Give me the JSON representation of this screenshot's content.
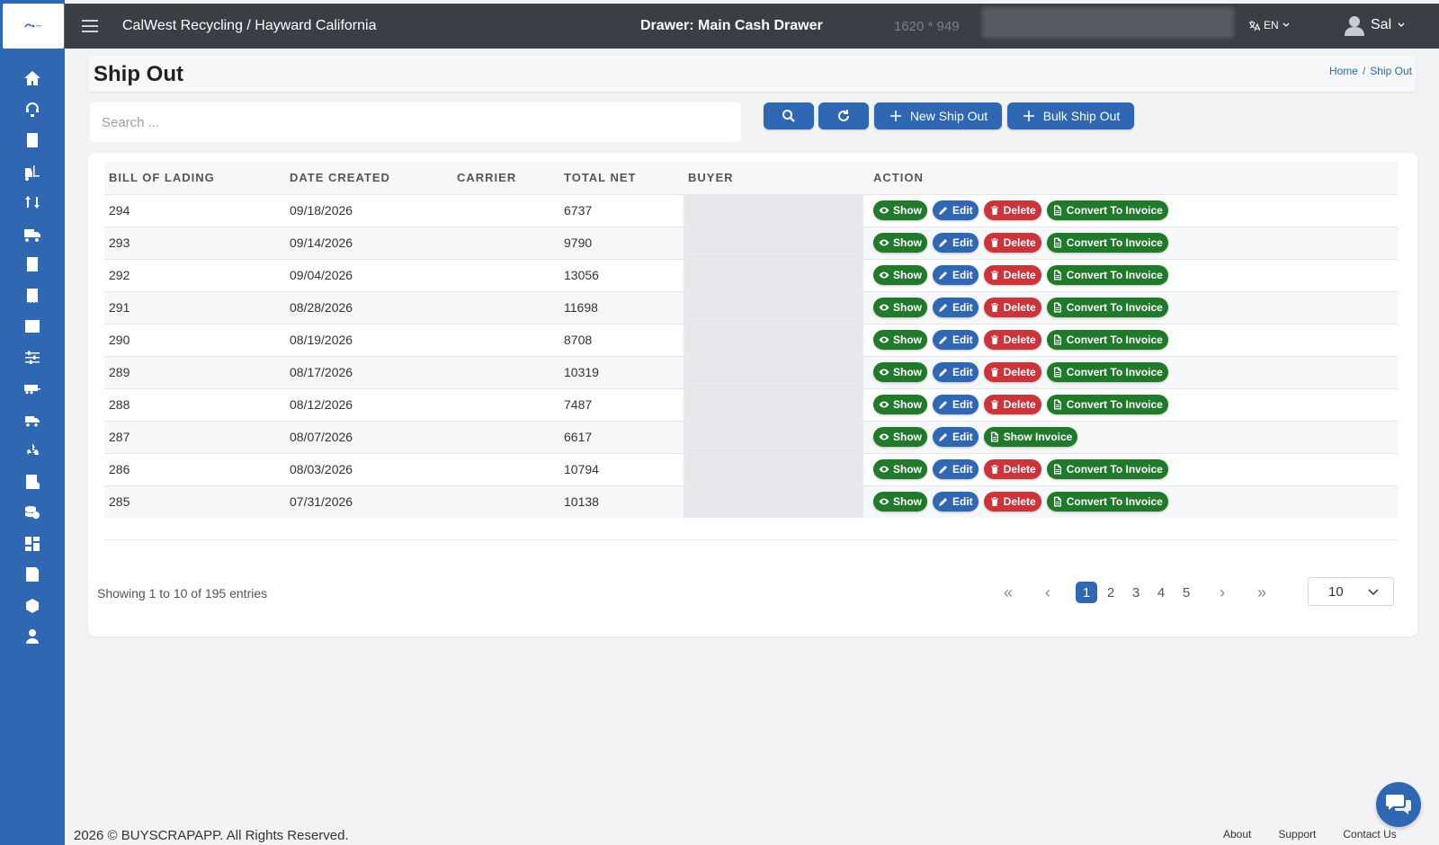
{
  "topbar": {
    "org": "CalWest Recycling / Hayward California",
    "drawer": "Drawer: Main Cash Drawer",
    "dims": "1620 * 949",
    "lang": "EN",
    "user": "Sal"
  },
  "page": {
    "title": "Ship Out",
    "breadcrumb": [
      "Home",
      "Ship Out"
    ]
  },
  "search": {
    "placeholder": "Search ..."
  },
  "toolbar": {
    "new_label": "New Ship Out",
    "bulk_label": "Bulk Ship Out"
  },
  "table": {
    "columns": [
      "BILL OF LADING",
      "DATE CREATED",
      "CARRIER",
      "TOTAL NET",
      "BUYER",
      "ACTION"
    ],
    "rows": [
      {
        "bol": "294",
        "date": "09/18/2026",
        "carrier": "",
        "net": "6737",
        "invoiced": false
      },
      {
        "bol": "293",
        "date": "09/14/2026",
        "carrier": "",
        "net": "9790",
        "invoiced": false
      },
      {
        "bol": "292",
        "date": "09/04/2026",
        "carrier": "",
        "net": "13056",
        "invoiced": false
      },
      {
        "bol": "291",
        "date": "08/28/2026",
        "carrier": "",
        "net": "11698",
        "invoiced": false
      },
      {
        "bol": "290",
        "date": "08/19/2026",
        "carrier": "",
        "net": "8708",
        "invoiced": false
      },
      {
        "bol": "289",
        "date": "08/17/2026",
        "carrier": "",
        "net": "10319",
        "invoiced": false
      },
      {
        "bol": "288",
        "date": "08/12/2026",
        "carrier": "",
        "net": "7487",
        "invoiced": false
      },
      {
        "bol": "287",
        "date": "08/07/2026",
        "carrier": "",
        "net": "6617",
        "invoiced": true
      },
      {
        "bol": "286",
        "date": "08/03/2026",
        "carrier": "",
        "net": "10794",
        "invoiced": false
      },
      {
        "bol": "285",
        "date": "07/31/2026",
        "carrier": "",
        "net": "10138",
        "invoiced": false
      }
    ],
    "actions": {
      "show": "Show",
      "edit": "Edit",
      "delete": "Delete",
      "convert": "Convert To Invoice",
      "show_invoice": "Show Invoice"
    }
  },
  "pagination": {
    "summary": "Showing 1 to 10 of 195 entries",
    "pages": [
      "1",
      "2",
      "3",
      "4",
      "5"
    ],
    "current": "1",
    "page_size": "10"
  },
  "footer": {
    "copyright": "2026 © BUYSCRAPAPP. All Rights Reserved.",
    "links": [
      "About",
      "Support",
      "Contact Us"
    ]
  },
  "sidebar": {
    "icons": [
      "home-icon",
      "support-icon",
      "document-icon",
      "forklift-icon",
      "transfer-icon",
      "truck-icon",
      "bill-icon",
      "receipt-icon",
      "grid-icon",
      "sliders-icon",
      "trailer-icon",
      "delivery-truck-icon",
      "recycle-icon",
      "report-icon",
      "coins-icon",
      "dashboard-icon",
      "list-report-icon",
      "package-icon",
      "user-icon"
    ]
  },
  "colors": {
    "sidebar": "#2f67b3",
    "topbar": "#3a3f45",
    "primary": "#2f67b3",
    "success": "#217a2c",
    "danger": "#c9353b"
  }
}
